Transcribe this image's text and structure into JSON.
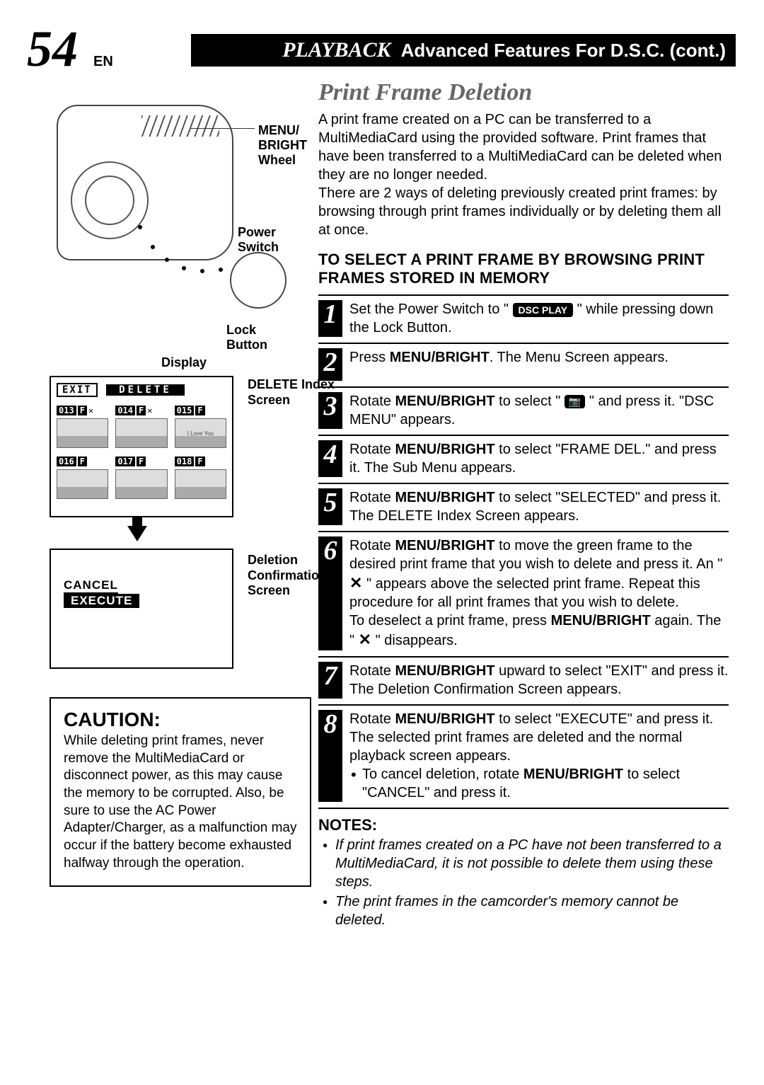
{
  "page": {
    "number": "54",
    "lang": "EN"
  },
  "header": {
    "playback": "PLAYBACK",
    "sub": "Advanced Features For D.S.C. (cont.)"
  },
  "camcorder": {
    "menu_label": "MENU/\nBRIGHT Wheel",
    "power_label": "Power Switch",
    "lock_label": "Lock Button"
  },
  "display": {
    "heading": "Display",
    "delete_index_label": "DELETE Index Screen",
    "deletion_conf_label": "Deletion Confirmation Screen",
    "exit": "EXIT",
    "delete": "DELETE",
    "thumbs": [
      {
        "num": "013",
        "f": "F",
        "x": true,
        "caption": ""
      },
      {
        "num": "014",
        "f": "F",
        "x": true,
        "caption": ""
      },
      {
        "num": "015",
        "f": "F",
        "x": false,
        "caption": "I Love You"
      },
      {
        "num": "016",
        "f": "F",
        "x": false,
        "caption": ""
      },
      {
        "num": "017",
        "f": "F",
        "x": false,
        "caption": ""
      },
      {
        "num": "018",
        "f": "F",
        "x": false,
        "caption": ""
      }
    ],
    "cancel": "CANCEL",
    "execute": "EXECUTE"
  },
  "caution": {
    "title": "CAUTION:",
    "body": "While deleting print frames, never remove the MultiMediaCard or disconnect power, as this may cause the memory to be corrupted. Also, be sure to use the AC Power Adapter/Charger, as a malfunction may occur if the battery become exhausted halfway through the operation."
  },
  "right": {
    "title": "Print Frame Deletion",
    "intro1": "A print frame created on a PC can be transferred to a MultiMediaCard using the provided software. Print frames that have been transferred to a MultiMediaCard can be deleted when they are no longer needed.",
    "intro2": "There are 2 ways of deleting previously created print frames: by browsing through print frames individually or by deleting them all at once.",
    "subheading": "TO SELECT A PRINT FRAME BY BROWSING PRINT FRAMES STORED IN MEMORY",
    "dsc_play": "DSC PLAY",
    "steps": [
      {
        "n": "1",
        "html": "Set the Power Switch to \" {DSCPLAY} \" while pressing down the Lock Button."
      },
      {
        "n": "2",
        "html": "Press <strong>MENU/BRIGHT</strong>. The Menu Screen appears."
      },
      {
        "n": "3",
        "html": "Rotate <strong>MENU/BRIGHT</strong> to select \" {CAMICON} \" and press it. \"DSC MENU\" appears."
      },
      {
        "n": "4",
        "html": "Rotate <strong>MENU/BRIGHT</strong> to select \"FRAME DEL.\" and press it. The Sub Menu appears."
      },
      {
        "n": "5",
        "html": "Rotate <strong>MENU/BRIGHT</strong> to select \"SELECTED\" and press it. The DELETE Index Screen appears."
      },
      {
        "n": "6",
        "html": "Rotate <strong>MENU/BRIGHT</strong> to move the green frame to the desired print frame that you wish to delete and press it. An \" <span class='x-mark'>✕</span> \" appears above the selected print frame. Repeat this procedure for all print frames that you wish to delete.<br>To deselect a print frame, press <strong>MENU/BRIGHT</strong> again. The \" <span class='x-mark'>✕</span> \" disappears."
      },
      {
        "n": "7",
        "html": "Rotate <strong>MENU/BRIGHT</strong> upward to select \"EXIT\" and press it. The Deletion Confirmation Screen appears."
      },
      {
        "n": "8",
        "html": "Rotate <strong>MENU/BRIGHT</strong> to select \"EXECUTE\" and press it. The selected print frames are deleted and the normal playback screen appears.<div class='sub-bullet'>To cancel deletion, rotate <strong>MENU/BRIGHT</strong> to select \"CANCEL\" and press it.</div>"
      }
    ],
    "notes_heading": "NOTES:",
    "notes": [
      "If print frames created on a PC have not been transferred to a MultiMediaCard, it is not possible to delete them using these steps.",
      "The print frames in the camcorder's memory cannot be deleted."
    ]
  }
}
